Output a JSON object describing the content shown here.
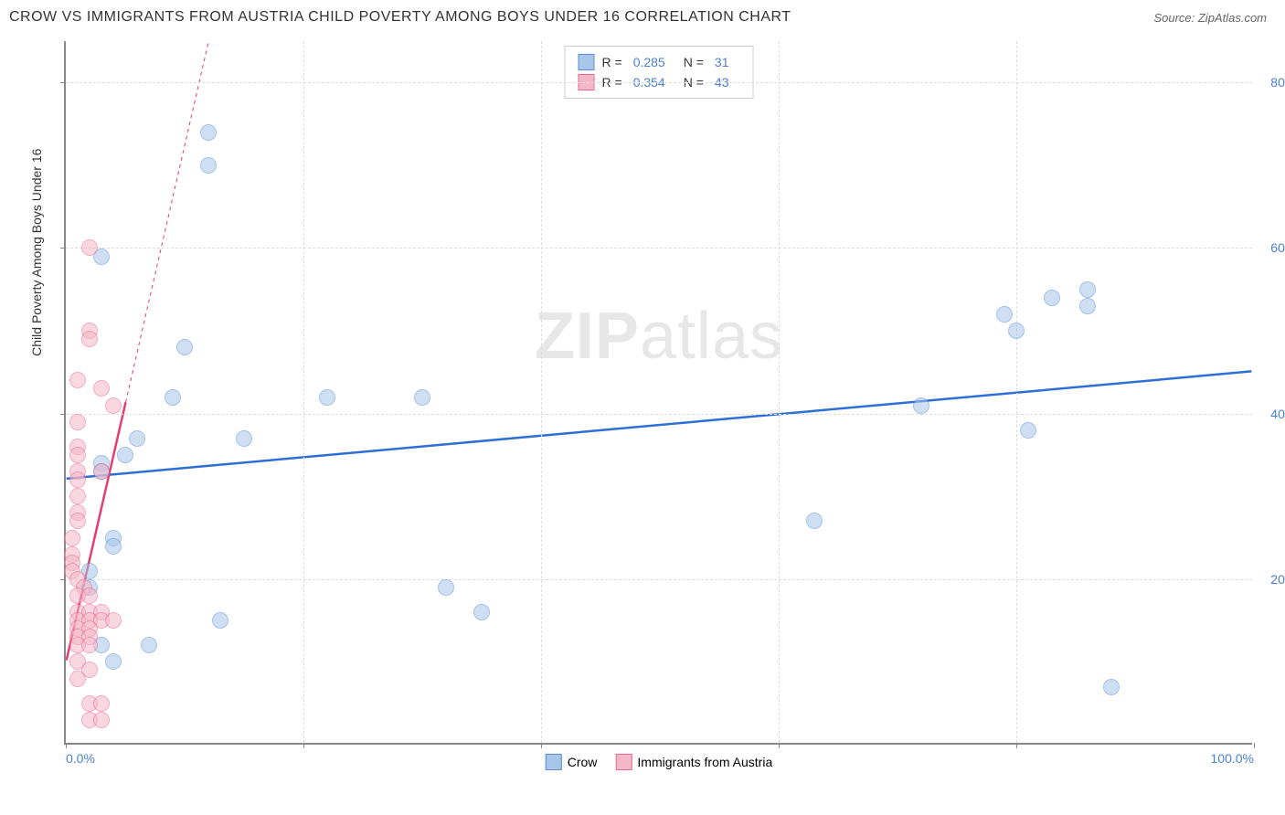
{
  "title": "CROW VS IMMIGRANTS FROM AUSTRIA CHILD POVERTY AMONG BOYS UNDER 16 CORRELATION CHART",
  "source": "Source: ZipAtlas.com",
  "watermark_a": "ZIP",
  "watermark_b": "atlas",
  "ylabel": "Child Poverty Among Boys Under 16",
  "chart": {
    "type": "scatter",
    "xlim": [
      0,
      100
    ],
    "ylim": [
      0,
      85
    ],
    "xtick_positions": [
      0,
      20,
      40,
      60,
      80,
      100
    ],
    "xtick_labels": [
      "0.0%",
      "",
      "",
      "",
      "",
      "100.0%"
    ],
    "ytick_positions": [
      20,
      40,
      60,
      80
    ],
    "ytick_labels": [
      "20.0%",
      "40.0%",
      "60.0%",
      "80.0%"
    ],
    "grid_color": "#dddddd",
    "axis_color": "#888888",
    "background_color": "#ffffff",
    "label_color": "#4a7fd8",
    "marker_radius": 9,
    "marker_opacity": 0.55,
    "series": [
      {
        "name": "Crow",
        "color_fill": "#a8c5ea",
        "color_stroke": "#5b8fd6",
        "R": "0.285",
        "N": "31",
        "trend": {
          "x1": 0,
          "y1": 32,
          "x2": 100,
          "y2": 45,
          "solid_until_x": 100,
          "color": "#2e6fd6",
          "width": 2.5
        },
        "points": [
          [
            12,
            74
          ],
          [
            12,
            70
          ],
          [
            3,
            59
          ],
          [
            10,
            48
          ],
          [
            9,
            42
          ],
          [
            6,
            37
          ],
          [
            15,
            37
          ],
          [
            5,
            35
          ],
          [
            3,
            34
          ],
          [
            3,
            33
          ],
          [
            22,
            42
          ],
          [
            30,
            42
          ],
          [
            72,
            41
          ],
          [
            79,
            52
          ],
          [
            80,
            50
          ],
          [
            83,
            54
          ],
          [
            86,
            55
          ],
          [
            86,
            53
          ],
          [
            63,
            27
          ],
          [
            81,
            38
          ],
          [
            88,
            7
          ],
          [
            4,
            25
          ],
          [
            4,
            24
          ],
          [
            7,
            12
          ],
          [
            13,
            15
          ],
          [
            32,
            19
          ],
          [
            35,
            16
          ],
          [
            2,
            21
          ],
          [
            2,
            19
          ],
          [
            3,
            12
          ],
          [
            4,
            10
          ]
        ]
      },
      {
        "name": "Immigrants from Austria",
        "color_fill": "#f5b8c8",
        "color_stroke": "#e86a8f",
        "R": "0.354",
        "N": "43",
        "trend": {
          "x1": 0,
          "y1": 10,
          "x2": 12,
          "y2": 85,
          "solid_until_x": 5,
          "color": "#e43d6f",
          "width": 2.5
        },
        "points": [
          [
            2,
            60
          ],
          [
            2,
            50
          ],
          [
            2,
            49
          ],
          [
            1,
            44
          ],
          [
            3,
            43
          ],
          [
            4,
            41
          ],
          [
            1,
            39
          ],
          [
            1,
            36
          ],
          [
            1,
            35
          ],
          [
            1,
            33
          ],
          [
            1,
            32
          ],
          [
            1,
            30
          ],
          [
            1,
            28
          ],
          [
            1,
            27
          ],
          [
            3,
            33
          ],
          [
            0.5,
            25
          ],
          [
            0.5,
            23
          ],
          [
            0.5,
            22
          ],
          [
            0.5,
            21
          ],
          [
            1,
            20
          ],
          [
            1.5,
            19
          ],
          [
            1,
            18
          ],
          [
            2,
            18
          ],
          [
            1,
            16
          ],
          [
            2,
            16
          ],
          [
            3,
            16
          ],
          [
            1,
            15
          ],
          [
            2,
            15
          ],
          [
            3,
            15
          ],
          [
            4,
            15
          ],
          [
            1,
            14
          ],
          [
            2,
            14
          ],
          [
            1,
            13
          ],
          [
            2,
            13
          ],
          [
            1,
            12
          ],
          [
            2,
            12
          ],
          [
            1,
            10
          ],
          [
            2,
            9
          ],
          [
            1,
            8
          ],
          [
            2,
            5
          ],
          [
            3,
            5
          ],
          [
            2,
            3
          ],
          [
            3,
            3
          ]
        ]
      }
    ]
  },
  "bottom_legend": [
    {
      "label": "Crow",
      "fill": "#a8c5ea",
      "stroke": "#5b8fd6"
    },
    {
      "label": "Immigrants from Austria",
      "fill": "#f5b8c8",
      "stroke": "#e86a8f"
    }
  ]
}
